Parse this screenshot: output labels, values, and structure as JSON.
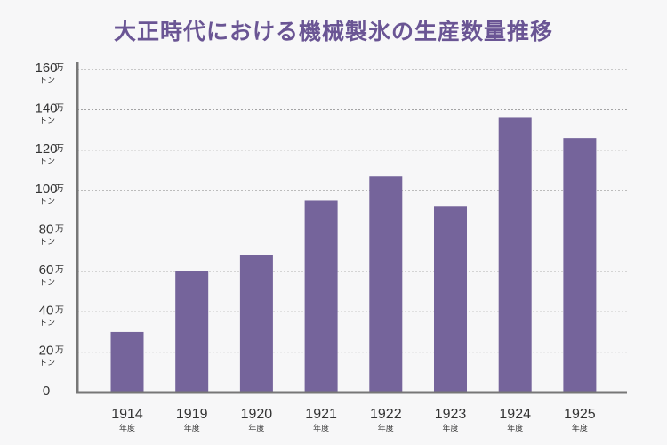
{
  "chart_data": {
    "type": "bar",
    "title": "大正時代における機械製氷の生産数量推移",
    "categories": [
      "1914",
      "1919",
      "1920",
      "1921",
      "1922",
      "1923",
      "1924",
      "1925"
    ],
    "category_suffix": "年度",
    "values": [
      30,
      60,
      68,
      95,
      107,
      92,
      136,
      126
    ],
    "value_unit": "万トン",
    "ylim": [
      0,
      160
    ],
    "yticks": [
      0,
      20,
      40,
      60,
      80,
      100,
      120,
      140,
      160
    ],
    "ytick_unit_top": "万",
    "ytick_unit_bottom": "トン",
    "grid": true,
    "legend": "none",
    "colors": {
      "bar": "#75649b",
      "title": "#6a5594",
      "axis": "#777777",
      "grid": "#999999"
    }
  }
}
